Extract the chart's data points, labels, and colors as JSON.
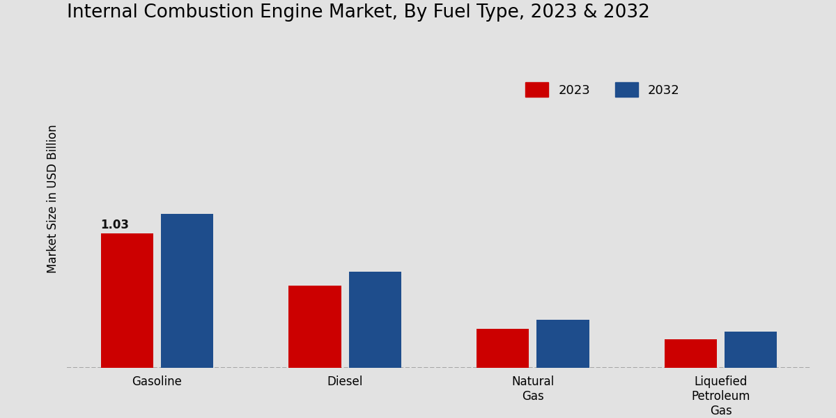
{
  "title": "Internal Combustion Engine Market, By Fuel Type, 2023 & 2032",
  "ylabel": "Market Size in USD Billion",
  "categories": [
    "Gasoline",
    "Diesel",
    "Natural\nGas",
    "Liquefied\nPetroleum\nGas"
  ],
  "values_2023": [
    1.03,
    0.63,
    0.3,
    0.22
  ],
  "values_2032": [
    1.18,
    0.74,
    0.37,
    0.28
  ],
  "color_2023": "#cc0000",
  "color_2032": "#1e4d8c",
  "bar_annotation": "1.03",
  "bar_annotation_index": 0,
  "background_color_top": "#d8d8d8",
  "background_color_bottom": "#e8e8e8",
  "title_fontsize": 19,
  "label_fontsize": 12,
  "tick_fontsize": 12,
  "legend_fontsize": 13,
  "ylim": [
    0,
    2.6
  ],
  "legend_labels": [
    "2023",
    "2032"
  ],
  "annotation_color": "#111111"
}
